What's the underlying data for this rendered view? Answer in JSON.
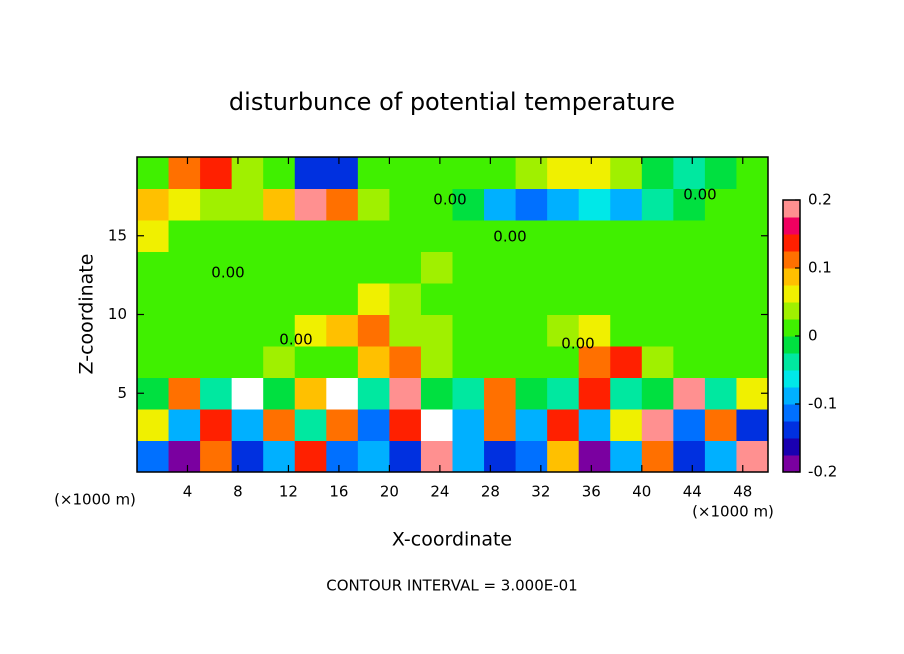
{
  "chart_data": {
    "type": "heatmap",
    "title": "disturbunce of potential temperature",
    "x_label": "X-coordinate",
    "y_label": "Z-coordinate",
    "x_unit_left": "(×1000 m)",
    "x_unit_right": "(×1000 m)",
    "footer": "CONTOUR INTERVAL = 3.000E-01",
    "contour_labels": [
      "0.00",
      "0.00",
      "0.00",
      "0.00",
      "0.00",
      "0.00"
    ],
    "xlim": [
      0,
      50
    ],
    "ylim": [
      0,
      20
    ],
    "xticks": [
      4,
      8,
      12,
      16,
      20,
      24,
      28,
      32,
      36,
      40,
      44,
      48
    ],
    "yticks": [
      5,
      10,
      15
    ],
    "x_bins": [
      0,
      2.5,
      5,
      7.5,
      10,
      12.5,
      15,
      17.5,
      20,
      22.5,
      25,
      27.5,
      30,
      32.5,
      35,
      37.5,
      40,
      42.5,
      45,
      47.5,
      50
    ],
    "z_bins": [
      0,
      2,
      4,
      6,
      8,
      10,
      12,
      14,
      16,
      18,
      20
    ],
    "values": [
      [
        -0.12,
        -0.2,
        0.1,
        -0.15,
        -0.1,
        0.15,
        -0.12,
        -0.08,
        -0.15,
        0.2,
        -0.1,
        -0.15,
        -0.12,
        0.08,
        -0.18,
        -0.1,
        0.12,
        -0.15,
        -0.1,
        0.2
      ],
      [
        0.05,
        -0.1,
        0.15,
        -0.08,
        0.12,
        -0.05,
        0.1,
        -0.12,
        0.15,
        0.25,
        -0.1,
        0.12,
        -0.08,
        0.15,
        -0.1,
        0.05,
        0.2,
        -0.12,
        0.1,
        -0.15
      ],
      [
        -0.02,
        0.1,
        -0.03,
        0.25,
        -0.02,
        0.08,
        0.22,
        -0.03,
        0.2,
        -0.02,
        -0.03,
        0.1,
        -0.02,
        -0.03,
        0.15,
        -0.03,
        -0.02,
        0.2,
        -0.03,
        0.05
      ],
      [
        0.02,
        0.01,
        0.02,
        0.01,
        0.03,
        0.01,
        0.02,
        0.08,
        0.12,
        0.03,
        0.01,
        0.02,
        0.01,
        0.02,
        0.1,
        0.14,
        0.03,
        0.02,
        0.01,
        0.02
      ],
      [
        0.01,
        0.02,
        0.01,
        0.01,
        0.02,
        0.05,
        0.08,
        0.12,
        0.04,
        0.03,
        0.01,
        0.01,
        0.02,
        0.04,
        0.05,
        0.02,
        0.01,
        0.01,
        0.02,
        0.01
      ],
      [
        0.01,
        0.01,
        0,
        0.01,
        0.01,
        0.01,
        0.02,
        0.05,
        0.03,
        0.02,
        0.01,
        0,
        0.01,
        0,
        0.01,
        0.01,
        0.01,
        0,
        0.01,
        0
      ],
      [
        0,
        0.01,
        0,
        0.01,
        0,
        0.01,
        0,
        0.01,
        0.01,
        0.03,
        0.02,
        0,
        0.01,
        0,
        0,
        0.01,
        0,
        0.01,
        0,
        0.01
      ],
      [
        0.06,
        0.02,
        0.01,
        0.01,
        0.02,
        0.01,
        0.01,
        0.01,
        0.01,
        0,
        0,
        0.01,
        0,
        0.01,
        0.01,
        0,
        0.01,
        0,
        0.01,
        0.01
      ],
      [
        0.09,
        0.07,
        0.04,
        0.03,
        0.08,
        0.18,
        0.1,
        0.04,
        0.02,
        0.01,
        -0.02,
        -0.09,
        -0.11,
        -0.09,
        -0.06,
        -0.08,
        -0.05,
        -0.02,
        0,
        0.01
      ],
      [
        0.01,
        0.12,
        0.15,
        0.03,
        0.01,
        -0.14,
        -0.15,
        0.01,
        0,
        0.01,
        0.02,
        0.02,
        0.04,
        0.06,
        0.05,
        0.03,
        -0.02,
        -0.03,
        -0.01,
        0
      ]
    ],
    "colorbar": {
      "lim": [
        -0.2,
        0.2
      ],
      "ticks": [
        -0.2,
        -0.1,
        0,
        0.1,
        0.2
      ],
      "colors": [
        "#7a00a0",
        "#1a00b0",
        "#0030e0",
        "#0070ff",
        "#00b0ff",
        "#00e8e8",
        "#00e8a0",
        "#00e040",
        "#40f000",
        "#a0f000",
        "#f0f000",
        "#ffc000",
        "#ff7000",
        "#ff2000",
        "#f00060",
        "#ff9090"
      ],
      "over_color": "#ffffff",
      "under_color": "#7a00a0"
    }
  }
}
